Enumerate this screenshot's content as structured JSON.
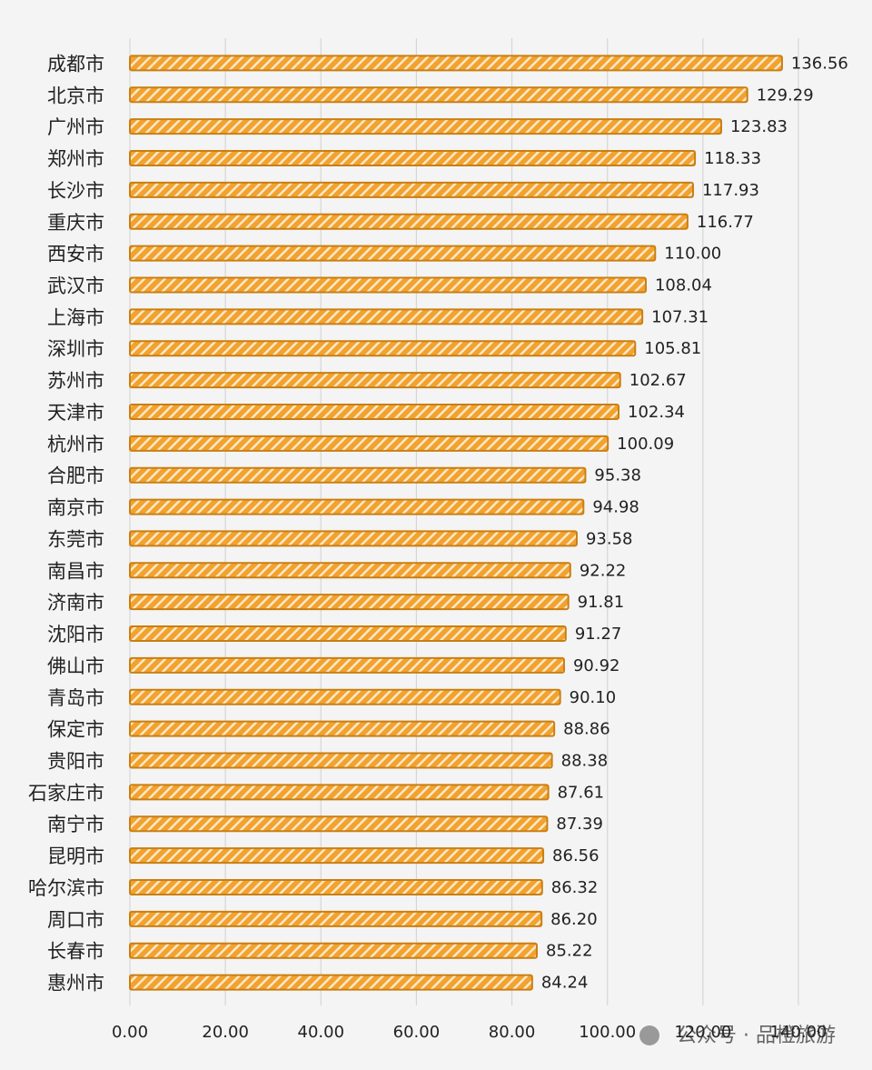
{
  "chart_data": {
    "type": "barh",
    "categories": [
      "成都市",
      "北京市",
      "广州市",
      "郑州市",
      "长沙市",
      "重庆市",
      "西安市",
      "武汉市",
      "上海市",
      "深圳市",
      "苏州市",
      "天津市",
      "杭州市",
      "合肥市",
      "南京市",
      "东莞市",
      "南昌市",
      "济南市",
      "沈阳市",
      "佛山市",
      "青岛市",
      "保定市",
      "贵阳市",
      "石家庄市",
      "南宁市",
      "昆明市",
      "哈尔滨市",
      "周口市",
      "长春市",
      "惠州市"
    ],
    "values": [
      136.56,
      129.29,
      123.83,
      118.33,
      117.93,
      116.77,
      110.0,
      108.04,
      107.31,
      105.81,
      102.67,
      102.34,
      100.09,
      95.38,
      94.98,
      93.58,
      92.22,
      91.81,
      91.27,
      90.92,
      90.1,
      88.86,
      88.38,
      87.61,
      87.39,
      86.56,
      86.32,
      86.2,
      85.22,
      84.24
    ],
    "value_labels": [
      "136.56",
      "129.29",
      "123.83",
      "118.33",
      "117.93",
      "116.77",
      "110.00",
      "108.04",
      "107.31",
      "105.81",
      "102.67",
      "102.34",
      "100.09",
      "95.38",
      "94.98",
      "93.58",
      "92.22",
      "91.81",
      "91.27",
      "90.92",
      "90.10",
      "88.86",
      "88.38",
      "87.61",
      "87.39",
      "86.56",
      "86.32",
      "86.20",
      "85.22",
      "84.24"
    ],
    "color": "#f2a22e",
    "edgecolor": "#c97f12",
    "xlim": [
      0,
      140
    ],
    "xticks": [
      {
        "value": 0,
        "label": "0.00"
      },
      {
        "value": 20,
        "label": "20.00"
      },
      {
        "value": 40,
        "label": "40.00"
      },
      {
        "value": 60,
        "label": "60.00"
      },
      {
        "value": 80,
        "label": "80.00"
      },
      {
        "value": 100,
        "label": "100.00"
      },
      {
        "value": 120,
        "label": "120.00"
      },
      {
        "value": 140,
        "label": "140.00"
      }
    ],
    "grid": true,
    "watermark": "公众号 · 品橙旅游"
  }
}
